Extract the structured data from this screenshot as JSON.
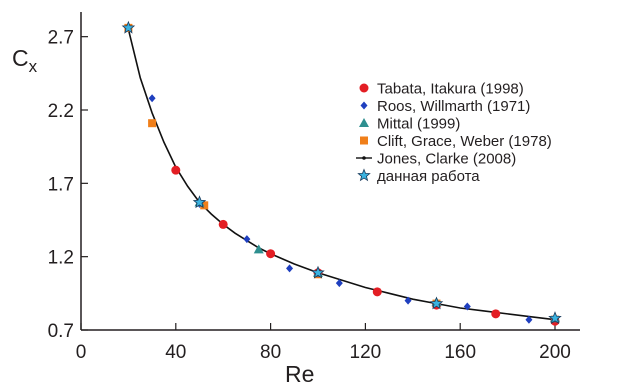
{
  "chart_data": {
    "type": "scatter",
    "title": "",
    "xlabel": "Re",
    "ylabel_main": "C",
    "ylabel_sub": "x",
    "xlim": [
      0,
      200
    ],
    "ylim": [
      0.7,
      2.8
    ],
    "x_ticks": [
      0,
      40,
      80,
      120,
      160,
      200
    ],
    "x_tick_labels": [
      "0",
      "40",
      "80",
      "120",
      "160",
      "200"
    ],
    "y_ticks": [
      0.7,
      1.2,
      1.7,
      2.2,
      2.7
    ],
    "y_tick_labels": [
      "0.7",
      "1.2",
      "1.7",
      "2.2",
      "2.7"
    ],
    "grid": false,
    "legend_position": "right",
    "series": [
      {
        "name": "Tabata, Itakura (1998)",
        "marker": "circle",
        "color": "#e31e24",
        "points": [
          [
            40,
            1.79
          ],
          [
            60,
            1.42
          ],
          [
            80,
            1.22
          ],
          [
            100,
            1.09
          ],
          [
            125,
            0.96
          ],
          [
            150,
            0.87
          ],
          [
            175,
            0.81
          ],
          [
            200,
            0.76
          ]
        ]
      },
      {
        "name": "Roos, Willmarth (1971)",
        "marker": "diamond",
        "color": "#1f3fbf",
        "points": [
          [
            30,
            2.28
          ],
          [
            50,
            1.56
          ],
          [
            70,
            1.32
          ],
          [
            88,
            1.12
          ],
          [
            109,
            1.02
          ],
          [
            138,
            0.9
          ],
          [
            163,
            0.86
          ],
          [
            189,
            0.77
          ]
        ]
      },
      {
        "name": "Mittal (1999)",
        "marker": "triangle",
        "color": "#2e8f8f",
        "points": [
          [
            50,
            1.57
          ],
          [
            75,
            1.25
          ],
          [
            100,
            1.09
          ],
          [
            150,
            0.89
          ],
          [
            200,
            0.78
          ]
        ]
      },
      {
        "name": "Clift, Grace, Weber (1978)",
        "marker": "square",
        "color": "#f07f1a",
        "points": [
          [
            20,
            2.76
          ],
          [
            30,
            2.11
          ],
          [
            52,
            1.55
          ],
          [
            100,
            1.08
          ],
          [
            150,
            0.88
          ],
          [
            200,
            0.77
          ]
        ]
      },
      {
        "name": "Jones, Clarke (2008)",
        "marker": "line",
        "color": "#111111",
        "points": [
          [
            20,
            2.75
          ],
          [
            25,
            2.42
          ],
          [
            30,
            2.18
          ],
          [
            35,
            1.98
          ],
          [
            40,
            1.81
          ],
          [
            45,
            1.68
          ],
          [
            50,
            1.57
          ],
          [
            55,
            1.49
          ],
          [
            60,
            1.42
          ],
          [
            65,
            1.36
          ],
          [
            70,
            1.31
          ],
          [
            75,
            1.26
          ],
          [
            80,
            1.22
          ],
          [
            90,
            1.15
          ],
          [
            100,
            1.09
          ],
          [
            110,
            1.04
          ],
          [
            120,
            0.99
          ],
          [
            130,
            0.95
          ],
          [
            140,
            0.91
          ],
          [
            150,
            0.88
          ],
          [
            160,
            0.85
          ],
          [
            170,
            0.83
          ],
          [
            180,
            0.81
          ],
          [
            190,
            0.79
          ],
          [
            200,
            0.77
          ]
        ]
      },
      {
        "name": "данная работа",
        "marker": "star",
        "color": "#3bb3e0",
        "points": [
          [
            20,
            2.76
          ],
          [
            50,
            1.57
          ],
          [
            100,
            1.09
          ],
          [
            150,
            0.88
          ],
          [
            200,
            0.78
          ]
        ]
      }
    ]
  }
}
